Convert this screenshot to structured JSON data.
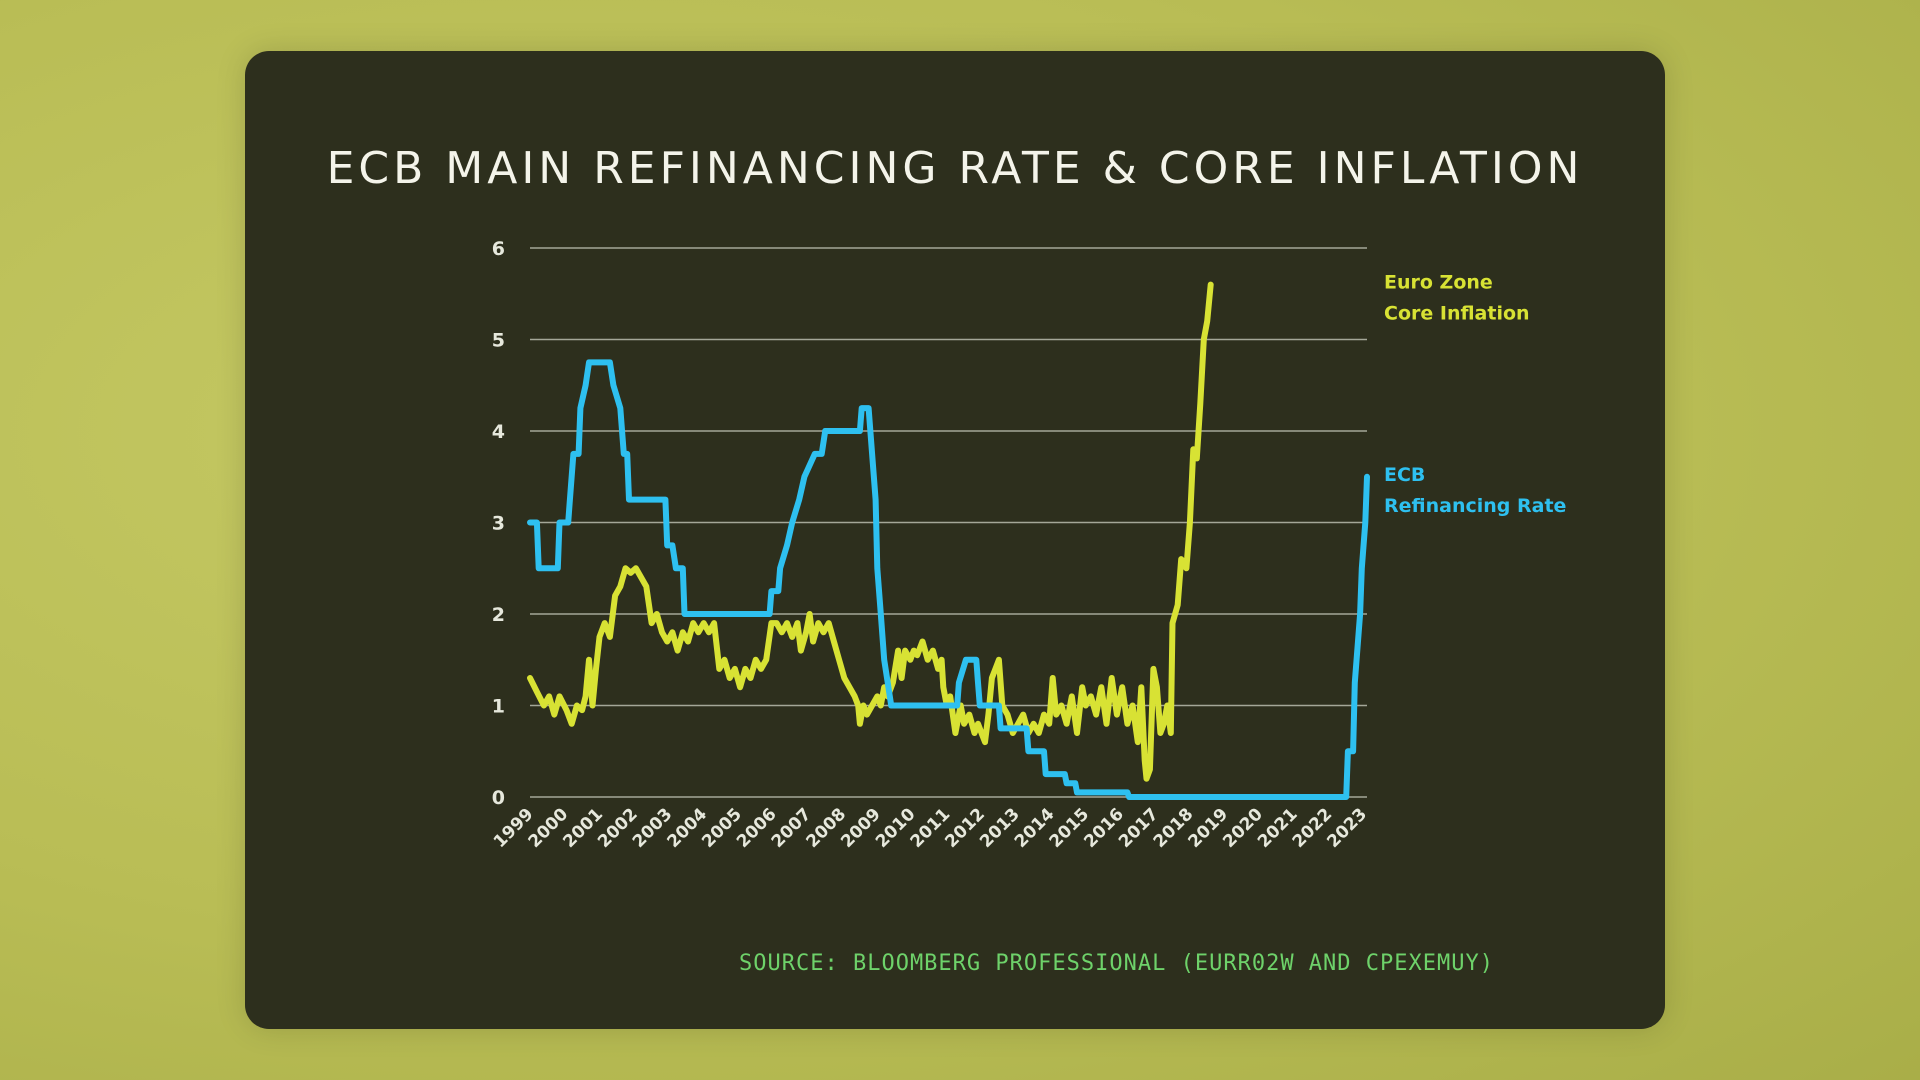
{
  "title": "ECB MAIN REFINANCING RATE & CORE INFLATION",
  "source": "SOURCE: BLOOMBERG PROFESSIONAL (EURR02W AND CPEXEMUY)",
  "colors": {
    "refi": "#2ec0f0",
    "core": "#d8e234",
    "grid": "#b9bcae",
    "tick_text": "#e6e8dc"
  },
  "chart_data": {
    "type": "line",
    "xlim": [
      1999,
      2023.1
    ],
    "ylim": [
      0,
      6
    ],
    "yticks": [
      0,
      1,
      2,
      3,
      4,
      5,
      6
    ],
    "xticks": [
      "1999",
      "2000",
      "2001",
      "2002",
      "2003",
      "2004",
      "2005",
      "2006",
      "2007",
      "2008",
      "2009",
      "2010",
      "2011",
      "2012",
      "2013",
      "2014",
      "2015",
      "2016",
      "2017",
      "2018",
      "2019",
      "2020",
      "2021",
      "2022",
      "2023"
    ],
    "legend_placement": "right, beside line ends",
    "series": [
      {
        "key": "refi",
        "name": "ECB Refinancing Rate",
        "name_lines": [
          "ECB",
          "Refinancing Rate"
        ],
        "points": [
          [
            1999.0,
            3.0
          ],
          [
            1999.2,
            3.0
          ],
          [
            1999.25,
            2.5
          ],
          [
            1999.8,
            2.5
          ],
          [
            1999.85,
            3.0
          ],
          [
            2000.1,
            3.0
          ],
          [
            2000.15,
            3.25
          ],
          [
            2000.25,
            3.75
          ],
          [
            2000.4,
            3.75
          ],
          [
            2000.45,
            4.25
          ],
          [
            2000.6,
            4.5
          ],
          [
            2000.7,
            4.75
          ],
          [
            2001.3,
            4.75
          ],
          [
            2001.4,
            4.5
          ],
          [
            2001.6,
            4.25
          ],
          [
            2001.7,
            3.75
          ],
          [
            2001.8,
            3.75
          ],
          [
            2001.85,
            3.25
          ],
          [
            2002.9,
            3.25
          ],
          [
            2002.95,
            2.75
          ],
          [
            2003.1,
            2.75
          ],
          [
            2003.2,
            2.5
          ],
          [
            2003.4,
            2.5
          ],
          [
            2003.45,
            2.0
          ],
          [
            2005.9,
            2.0
          ],
          [
            2005.95,
            2.25
          ],
          [
            2006.15,
            2.25
          ],
          [
            2006.2,
            2.5
          ],
          [
            2006.4,
            2.75
          ],
          [
            2006.55,
            3.0
          ],
          [
            2006.75,
            3.25
          ],
          [
            2006.9,
            3.5
          ],
          [
            2007.2,
            3.75
          ],
          [
            2007.4,
            3.75
          ],
          [
            2007.5,
            4.0
          ],
          [
            2008.5,
            4.0
          ],
          [
            2008.55,
            4.25
          ],
          [
            2008.75,
            4.25
          ],
          [
            2008.85,
            3.75
          ],
          [
            2008.95,
            3.25
          ],
          [
            2009.0,
            2.5
          ],
          [
            2009.1,
            2.0
          ],
          [
            2009.2,
            1.5
          ],
          [
            2009.3,
            1.25
          ],
          [
            2009.4,
            1.0
          ],
          [
            2011.3,
            1.0
          ],
          [
            2011.35,
            1.25
          ],
          [
            2011.55,
            1.5
          ],
          [
            2011.85,
            1.5
          ],
          [
            2011.9,
            1.25
          ],
          [
            2011.95,
            1.0
          ],
          [
            2012.5,
            1.0
          ],
          [
            2012.55,
            0.75
          ],
          [
            2013.3,
            0.75
          ],
          [
            2013.35,
            0.5
          ],
          [
            2013.8,
            0.5
          ],
          [
            2013.85,
            0.25
          ],
          [
            2014.4,
            0.25
          ],
          [
            2014.45,
            0.15
          ],
          [
            2014.7,
            0.15
          ],
          [
            2014.75,
            0.05
          ],
          [
            2016.2,
            0.05
          ],
          [
            2016.25,
            0.0
          ],
          [
            2022.5,
            0.0
          ],
          [
            2022.55,
            0.5
          ],
          [
            2022.7,
            0.5
          ],
          [
            2022.75,
            1.25
          ],
          [
            2022.9,
            2.0
          ],
          [
            2022.95,
            2.5
          ],
          [
            2023.05,
            3.0
          ],
          [
            2023.1,
            3.5
          ]
        ]
      },
      {
        "key": "core",
        "name": "Euro Zone Core Inflation",
        "name_lines": [
          "Euro Zone",
          "Core Inflation"
        ],
        "points": [
          [
            1999.0,
            1.3
          ],
          [
            1999.2,
            1.15
          ],
          [
            1999.4,
            1.0
          ],
          [
            1999.55,
            1.1
          ],
          [
            1999.7,
            0.9
          ],
          [
            1999.85,
            1.1
          ],
          [
            2000.05,
            0.95
          ],
          [
            2000.2,
            0.8
          ],
          [
            2000.35,
            1.0
          ],
          [
            2000.5,
            0.95
          ],
          [
            2000.6,
            1.1
          ],
          [
            2000.7,
            1.5
          ],
          [
            2000.8,
            1.0
          ],
          [
            2000.9,
            1.4
          ],
          [
            2001.0,
            1.75
          ],
          [
            2001.15,
            1.9
          ],
          [
            2001.3,
            1.75
          ],
          [
            2001.45,
            2.2
          ],
          [
            2001.6,
            2.3
          ],
          [
            2001.75,
            2.5
          ],
          [
            2001.9,
            2.45
          ],
          [
            2002.05,
            2.5
          ],
          [
            2002.2,
            2.4
          ],
          [
            2002.35,
            2.3
          ],
          [
            2002.5,
            1.9
          ],
          [
            2002.65,
            2.0
          ],
          [
            2002.8,
            1.8
          ],
          [
            2002.95,
            1.7
          ],
          [
            2003.1,
            1.8
          ],
          [
            2003.25,
            1.6
          ],
          [
            2003.4,
            1.8
          ],
          [
            2003.55,
            1.7
          ],
          [
            2003.7,
            1.9
          ],
          [
            2003.85,
            1.8
          ],
          [
            2004.0,
            1.9
          ],
          [
            2004.15,
            1.8
          ],
          [
            2004.3,
            1.9
          ],
          [
            2004.45,
            1.4
          ],
          [
            2004.6,
            1.5
          ],
          [
            2004.75,
            1.3
          ],
          [
            2004.9,
            1.4
          ],
          [
            2005.05,
            1.2
          ],
          [
            2005.2,
            1.4
          ],
          [
            2005.35,
            1.3
          ],
          [
            2005.5,
            1.5
          ],
          [
            2005.65,
            1.4
          ],
          [
            2005.8,
            1.5
          ],
          [
            2005.95,
            1.9
          ],
          [
            2006.1,
            1.9
          ],
          [
            2006.25,
            1.8
          ],
          [
            2006.4,
            1.9
          ],
          [
            2006.55,
            1.75
          ],
          [
            2006.7,
            1.9
          ],
          [
            2006.8,
            1.6
          ],
          [
            2006.95,
            1.8
          ],
          [
            2007.05,
            2.0
          ],
          [
            2007.15,
            1.7
          ],
          [
            2007.3,
            1.9
          ],
          [
            2007.45,
            1.8
          ],
          [
            2007.6,
            1.9
          ],
          [
            2007.75,
            1.7
          ],
          [
            2007.9,
            1.5
          ],
          [
            2008.05,
            1.3
          ],
          [
            2008.2,
            1.2
          ],
          [
            2008.35,
            1.1
          ],
          [
            2008.45,
            1.0
          ],
          [
            2008.5,
            0.8
          ],
          [
            2008.6,
            1.0
          ],
          [
            2008.7,
            0.9
          ],
          [
            2008.85,
            1.0
          ],
          [
            2009.0,
            1.1
          ],
          [
            2009.1,
            1.0
          ],
          [
            2009.2,
            1.2
          ],
          [
            2009.3,
            1.1
          ],
          [
            2009.45,
            1.25
          ],
          [
            2009.6,
            1.6
          ],
          [
            2009.7,
            1.3
          ],
          [
            2009.8,
            1.6
          ],
          [
            2009.95,
            1.5
          ],
          [
            2010.05,
            1.6
          ],
          [
            2010.15,
            1.55
          ],
          [
            2010.3,
            1.7
          ],
          [
            2010.45,
            1.5
          ],
          [
            2010.6,
            1.6
          ],
          [
            2010.75,
            1.4
          ],
          [
            2010.85,
            1.5
          ],
          [
            2010.9,
            1.2
          ],
          [
            2011.0,
            1.0
          ],
          [
            2011.1,
            1.1
          ],
          [
            2011.25,
            0.7
          ],
          [
            2011.4,
            1.0
          ],
          [
            2011.5,
            0.8
          ],
          [
            2011.65,
            0.9
          ],
          [
            2011.8,
            0.7
          ],
          [
            2011.9,
            0.8
          ],
          [
            2012.0,
            0.7
          ],
          [
            2012.1,
            0.6
          ],
          [
            2012.2,
            0.9
          ],
          [
            2012.3,
            1.3
          ],
          [
            2012.4,
            1.4
          ],
          [
            2012.5,
            1.5
          ],
          [
            2012.6,
            1.0
          ],
          [
            2012.75,
            0.9
          ],
          [
            2012.9,
            0.7
          ],
          [
            2013.05,
            0.8
          ],
          [
            2013.2,
            0.9
          ],
          [
            2013.35,
            0.7
          ],
          [
            2013.5,
            0.8
          ],
          [
            2013.65,
            0.7
          ],
          [
            2013.8,
            0.9
          ],
          [
            2013.95,
            0.8
          ],
          [
            2014.05,
            1.3
          ],
          [
            2014.15,
            0.9
          ],
          [
            2014.3,
            1.0
          ],
          [
            2014.45,
            0.8
          ],
          [
            2014.6,
            1.1
          ],
          [
            2014.75,
            0.7
          ],
          [
            2014.9,
            1.2
          ],
          [
            2015.0,
            1.0
          ],
          [
            2015.15,
            1.1
          ],
          [
            2015.3,
            0.9
          ],
          [
            2015.45,
            1.2
          ],
          [
            2015.6,
            0.8
          ],
          [
            2015.75,
            1.3
          ],
          [
            2015.9,
            0.9
          ],
          [
            2016.05,
            1.2
          ],
          [
            2016.2,
            0.8
          ],
          [
            2016.35,
            1.0
          ],
          [
            2016.5,
            0.6
          ],
          [
            2016.6,
            1.2
          ],
          [
            2016.7,
            0.4
          ],
          [
            2016.75,
            0.2
          ],
          [
            2016.85,
            0.3
          ],
          [
            2016.95,
            1.4
          ],
          [
            2017.05,
            1.2
          ],
          [
            2017.15,
            0.7
          ],
          [
            2017.25,
            0.8
          ],
          [
            2017.35,
            1.0
          ],
          [
            2017.45,
            0.7
          ],
          [
            2017.5,
            1.9
          ],
          [
            2017.65,
            2.1
          ],
          [
            2017.75,
            2.6
          ],
          [
            2017.9,
            2.5
          ],
          [
            2018.0,
            3.0
          ],
          [
            2018.1,
            3.8
          ],
          [
            2018.2,
            3.7
          ],
          [
            2018.3,
            4.3
          ],
          [
            2018.4,
            5.0
          ],
          [
            2018.5,
            5.2
          ],
          [
            2018.6,
            5.6
          ]
        ]
      }
    ]
  }
}
